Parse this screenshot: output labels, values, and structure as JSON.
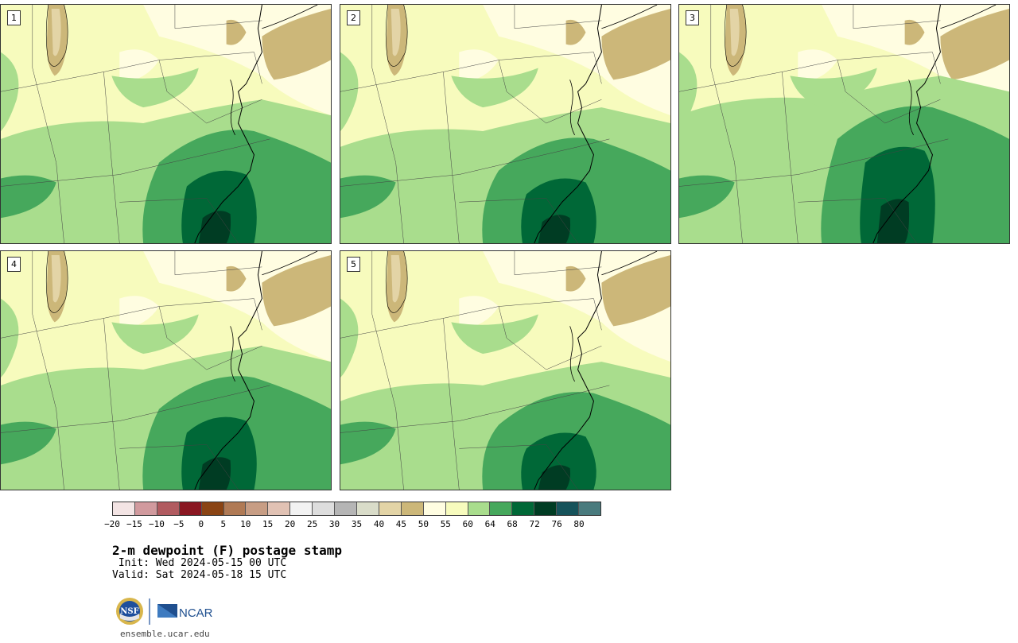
{
  "title": "2-m dewpoint (F) postage stamp",
  "init_line": " Init: Wed 2024-05-15 00 UTC",
  "valid_line": "Valid: Sat 2024-05-18 15 UTC",
  "footer_url": "ensemble.ucar.edu",
  "logo": {
    "nsf_text": "NSF",
    "ncar_text": "NCAR",
    "nsf_icon": "nsf-seal-icon",
    "ncar_icon": "ncar-logo-icon"
  },
  "panels": [
    {
      "label": "1"
    },
    {
      "label": "2"
    },
    {
      "label": "3"
    },
    {
      "label": "4"
    },
    {
      "label": "5"
    }
  ],
  "colorbar": {
    "colors": [
      "#f3e4e4",
      "#d19a9e",
      "#b15b60",
      "#8a1722",
      "#8a4414",
      "#b07a55",
      "#c79d84",
      "#e1c2b4",
      "#f2f2f2",
      "#dddddd",
      "#b5b5b5",
      "#d9dcc9",
      "#e3d4a6",
      "#ccb779",
      "#fffde1",
      "#f7fbbd",
      "#a9dd8d",
      "#46a85c",
      "#006837",
      "#003c23",
      "#16535b",
      "#4a7b7e"
    ],
    "tick_labels": [
      "−20",
      "−15",
      "−10",
      "−5",
      "0",
      "5",
      "10",
      "15",
      "20",
      "25",
      "30",
      "35",
      "40",
      "45",
      "50",
      "55",
      "60",
      "64",
      "68",
      "72",
      "76",
      "80"
    ]
  }
}
